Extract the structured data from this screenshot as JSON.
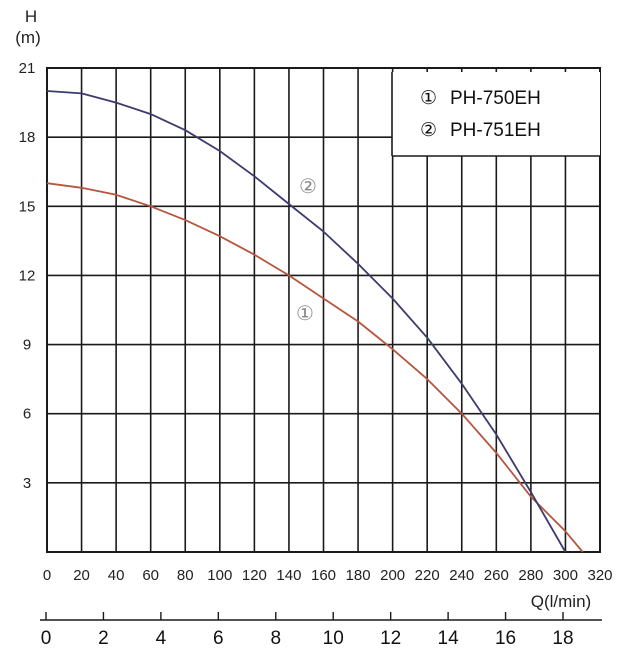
{
  "chart_data": {
    "type": "line",
    "yaxis": {
      "label_line1": "H",
      "label_line2": "(m)",
      "ylim": [
        0,
        21
      ],
      "ticks": [
        3,
        6,
        9,
        12,
        15,
        18,
        21
      ]
    },
    "xaxis": {
      "label": "Q(l/min)",
      "xlim": [
        0,
        320
      ],
      "ticks": [
        0,
        20,
        40,
        60,
        80,
        100,
        120,
        140,
        160,
        180,
        200,
        220,
        240,
        260,
        280,
        300,
        320
      ]
    },
    "secondary_xaxis": {
      "ticks": [
        0,
        2,
        4,
        6,
        8,
        10,
        12,
        14,
        16,
        18
      ]
    },
    "legend": {
      "position": "top-right",
      "entries": [
        {
          "marker": "①",
          "label": "PH-750EH"
        },
        {
          "marker": "②",
          "label": "PH-751EH"
        }
      ]
    },
    "grid": true,
    "series": [
      {
        "name": "PH-750EH",
        "marker": "①",
        "color": "#b5563f",
        "points": [
          [
            0,
            16
          ],
          [
            20,
            15.8
          ],
          [
            40,
            15.5
          ],
          [
            60,
            15
          ],
          [
            80,
            14.4
          ],
          [
            100,
            13.7
          ],
          [
            120,
            12.9
          ],
          [
            140,
            12
          ],
          [
            160,
            11
          ],
          [
            180,
            10
          ],
          [
            200,
            8.8
          ],
          [
            220,
            7.5
          ],
          [
            240,
            6
          ],
          [
            260,
            4.3
          ],
          [
            280,
            2.4
          ],
          [
            300,
            0.9
          ],
          [
            310,
            0
          ]
        ]
      },
      {
        "name": "PH-751EH",
        "marker": "②",
        "color": "#3b3b6e",
        "points": [
          [
            0,
            20
          ],
          [
            20,
            19.9
          ],
          [
            40,
            19.5
          ],
          [
            60,
            19
          ],
          [
            80,
            18.3
          ],
          [
            100,
            17.4
          ],
          [
            120,
            16.3
          ],
          [
            140,
            15.1
          ],
          [
            160,
            13.9
          ],
          [
            180,
            12.5
          ],
          [
            200,
            11
          ],
          [
            220,
            9.3
          ],
          [
            240,
            7.3
          ],
          [
            260,
            5.1
          ],
          [
            280,
            2.6
          ],
          [
            300,
            0
          ]
        ]
      }
    ]
  }
}
